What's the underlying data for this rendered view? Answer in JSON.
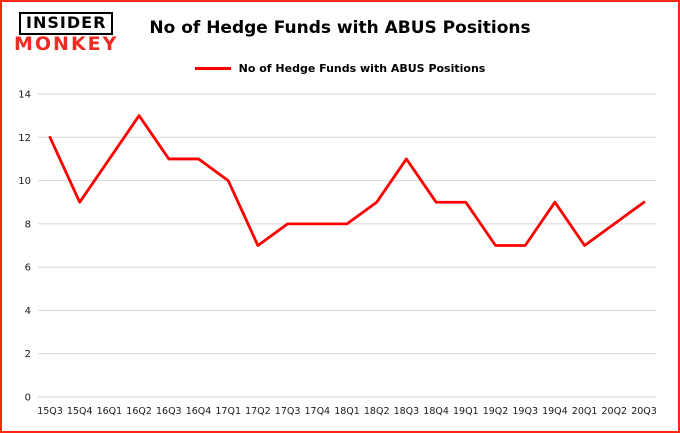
{
  "logo": {
    "line1": "INSIDER",
    "line2": "MONKEY"
  },
  "header": {
    "title": "No of Hedge Funds with ABUS Positions"
  },
  "legend": {
    "label": "No of Hedge Funds with ABUS Positions",
    "color": "#ff0000"
  },
  "colors": {
    "line": "#ff0000",
    "grid": "#d6d6d6",
    "border": "#fe2712",
    "monkey_red": "#ee2b24"
  },
  "chart_data": {
    "type": "line",
    "title": "No of Hedge Funds with ABUS Positions",
    "categories": [
      "15Q3",
      "15Q4",
      "16Q1",
      "16Q2",
      "16Q3",
      "16Q4",
      "17Q1",
      "17Q2",
      "17Q3",
      "17Q4",
      "18Q1",
      "18Q2",
      "18Q3",
      "18Q4",
      "19Q1",
      "19Q2",
      "19Q3",
      "19Q4",
      "20Q1",
      "20Q2",
      "20Q3"
    ],
    "values": [
      12,
      9,
      11,
      13,
      11,
      11,
      10,
      7,
      8,
      8,
      8,
      9,
      11,
      9,
      9,
      7,
      7,
      9,
      7,
      8,
      9
    ],
    "xlabel": "",
    "ylabel": "",
    "ylim": [
      0,
      14
    ],
    "yticks": [
      0,
      2,
      4,
      6,
      8,
      10,
      12,
      14
    ],
    "grid": true,
    "legend_position": "top",
    "line_color": "#ff0000"
  }
}
